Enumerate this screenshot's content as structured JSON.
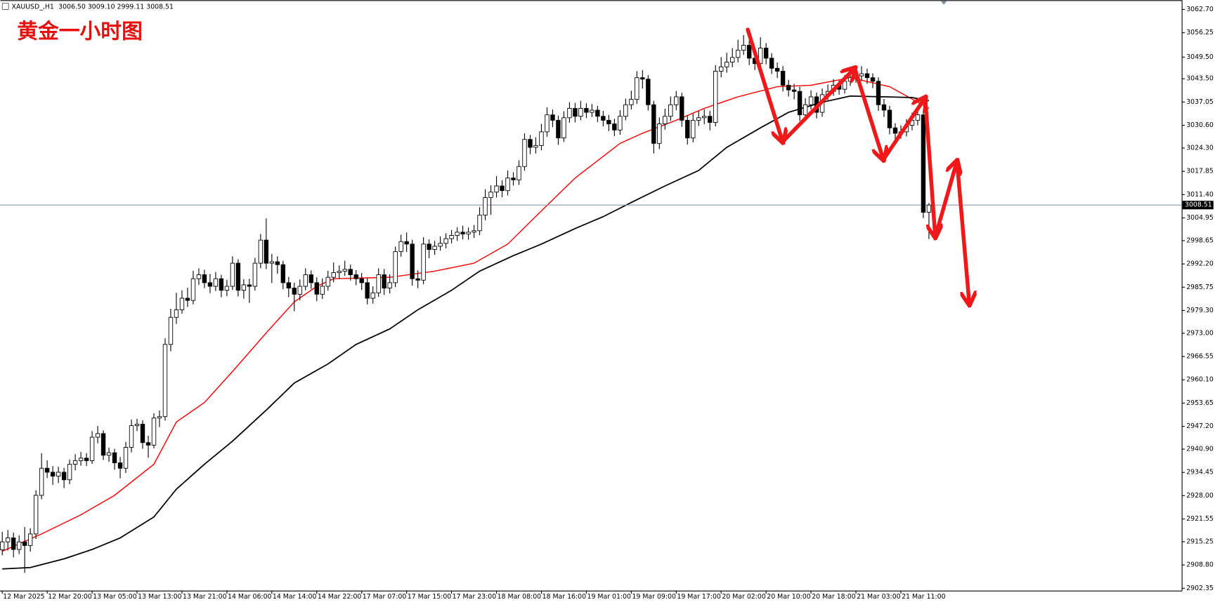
{
  "header": {
    "symbol": "XAUUSD_,H1",
    "open": "3006.50",
    "high": "3009.10",
    "low": "2999.11",
    "close": "3008.51"
  },
  "chart_data": {
    "type": "candlestick",
    "title": "黄金一小时图",
    "up_color": "#ffffff",
    "down_color": "#000000",
    "last_price_line_color": "#8a9bb0",
    "open": [
      2913.0,
      2915.2,
      2916.3,
      2913.1,
      2915.2,
      2914.2,
      2917.4,
      2928.1,
      2935.6,
      2934.5,
      2933.4,
      2934.5,
      2932.4,
      2936.7,
      2937.7,
      2938.4,
      2937.7,
      2944.2,
      2945.2,
      2939.2,
      2939.9,
      2937.1,
      2935.6,
      2941.4,
      2947.4,
      2947.8,
      2942.7,
      2942.0,
      2949.5,
      2949.9,
      2969.9,
      2977.4,
      2979.5,
      2982.7,
      2982.1,
      2988.1,
      2989.2,
      2987.0,
      2986.0,
      2988.1,
      2984.9,
      2986.0,
      2992.4,
      2984.9,
      2986.4,
      2986.0,
      2992.4,
      2998.8,
      2992.4,
      2992.8,
      2992.0,
      2987.0,
      2985.5,
      2983.8,
      2986.0,
      2989.2,
      2987.0,
      2983.8,
      2986.0,
      2988.5,
      2989.8,
      2990.2,
      2990.7,
      2989.2,
      2988.1,
      2987.0,
      2982.7,
      2984.2,
      2989.2,
      2985.5,
      2987.0,
      2995.6,
      2998.4,
      2997.7,
      2988.1,
      2987.7,
      2997.7,
      2996.2,
      2997.1,
      2997.9,
      2999.2,
      3000.1,
      3001.0,
      3000.5,
      3001.0,
      3001.4,
      3005.7,
      3010.6,
      3012.1,
      3013.8,
      3012.5,
      3016.0,
      3015.5,
      3019.2,
      3026.7,
      3024.5,
      3025.0,
      3028.8,
      3033.5,
      3032.0,
      3027.1,
      3032.7,
      3035.3,
      3033.1,
      3035.3,
      3034.2,
      3034.8,
      3033.1,
      3032.0,
      3031.0,
      3029.3,
      3033.1,
      3036.3,
      3037.8,
      3043.8,
      3043.4,
      3036.3,
      3025.6,
      3031.0,
      3033.1,
      3036.3,
      3038.5,
      3032.0,
      3027.1,
      3032.0,
      3032.7,
      3033.1,
      3031.4,
      3045.6,
      3046.8,
      3048.1,
      3049.4,
      3051.4,
      3052.8,
      3049.2,
      3047.7,
      3052.0,
      3049.2,
      3046.4,
      3045.6,
      3041.7,
      3040.4,
      3040.0,
      3033.5,
      3036.3,
      3038.5,
      3034.2,
      3039.1,
      3040.0,
      3041.7,
      3040.6,
      3042.8,
      3043.8,
      3044.3,
      3044.9,
      3043.8,
      3042.8,
      3036.3,
      3034.8,
      3029.9,
      3028.4,
      3028.8,
      3030.6,
      3032.0,
      3033.5,
      3006.5
    ],
    "high": [
      2918.0,
      2918.5,
      2917.8,
      2917.0,
      2919.3,
      2919.0,
      2929.5,
      2939.8,
      2937.8,
      2936.2,
      2936.0,
      2935.7,
      2938.0,
      2939.5,
      2940.1,
      2939.8,
      2945.9,
      2947.3,
      2946.1,
      2941.3,
      2941.0,
      2938.7,
      2942.9,
      2949.1,
      2949.3,
      2948.9,
      2944.6,
      2950.8,
      2951.6,
      2971.6,
      2979.8,
      2984.2,
      2984.9,
      2985.6,
      2990.3,
      2991.0,
      2990.6,
      2989.4,
      2990.0,
      2989.2,
      2987.8,
      2994.3,
      2993.5,
      2988.0,
      2988.1,
      2993.9,
      3000.5,
      3004.8,
      2995.0,
      2994.3,
      2993.1,
      2988.6,
      2987.0,
      2987.9,
      2991.0,
      2990.4,
      2988.5,
      2988.2,
      2990.3,
      2992.6,
      2991.8,
      2993.1,
      2992.0,
      2990.5,
      2989.7,
      2988.3,
      2986.0,
      2991.0,
      2990.8,
      2989.3,
      2997.0,
      3000.3,
      3000.9,
      2998.9,
      2990.4,
      2999.6,
      2999.0,
      2998.6,
      2999.8,
      3000.7,
      3001.6,
      3002.4,
      3002.8,
      3002.3,
      3003.0,
      3007.9,
      3012.9,
      3014.0,
      3016.5,
      3015.4,
      3018.1,
      3017.6,
      3020.9,
      3028.4,
      3027.9,
      3027.3,
      3031.0,
      3035.6,
      3035.0,
      3033.3,
      3034.5,
      3037.0,
      3036.8,
      3037.4,
      3036.7,
      3036.5,
      3036.0,
      3034.6,
      3033.5,
      3032.4,
      3034.8,
      3038.0,
      3040.2,
      3045.6,
      3045.9,
      3044.5,
      3037.4,
      3032.8,
      3035.2,
      3038.6,
      3040.1,
      3039.6,
      3033.4,
      3033.8,
      3034.6,
      3035.0,
      3034.6,
      3047.3,
      3049.5,
      3050.7,
      3052.0,
      3054.3,
      3055.6,
      3054.1,
      3051.0,
      3055.0,
      3053.4,
      3050.6,
      3048.0,
      3047.0,
      3043.2,
      3042.1,
      3041.3,
      3038.1,
      3040.3,
      3039.7,
      3040.8,
      3041.9,
      3043.4,
      3043.0,
      3044.5,
      3045.6,
      3046.1,
      3047.0,
      3046.3,
      3045.0,
      3043.9,
      3037.9,
      3036.0,
      3031.2,
      3030.6,
      3032.3,
      3034.1,
      3035.8,
      3034.7,
      3009.1
    ],
    "low": [
      2911.5,
      2912.8,
      2910.9,
      2911.8,
      2906.6,
      2912.5,
      2916.0,
      2927.0,
      2932.9,
      2931.0,
      2931.5,
      2930.1,
      2931.2,
      2935.0,
      2936.3,
      2936.2,
      2936.8,
      2942.5,
      2937.9,
      2937.4,
      2935.2,
      2932.8,
      2934.3,
      2940.0,
      2945.9,
      2941.0,
      2938.5,
      2941.1,
      2947.0,
      2948.8,
      2968.0,
      2975.6,
      2978.4,
      2980.3,
      2981.0,
      2986.4,
      2985.5,
      2984.1,
      2984.7,
      2983.0,
      2983.3,
      2985.0,
      2983.2,
      2982.6,
      2981.4,
      2984.8,
      2991.0,
      2990.8,
      2986.9,
      2989.5,
      2985.2,
      2983.0,
      2979.1,
      2982.1,
      2984.9,
      2985.3,
      2981.9,
      2982.5,
      2984.8,
      2987.1,
      2988.0,
      2988.9,
      2987.6,
      2986.3,
      2985.0,
      2981.0,
      2981.2,
      2983.1,
      2983.6,
      2984.0,
      2985.8,
      2994.2,
      2995.5,
      2986.2,
      2985.5,
      2986.6,
      2993.8,
      2994.7,
      2995.9,
      2996.5,
      2997.9,
      2998.6,
      2999.0,
      2998.9,
      2999.4,
      3000.2,
      3004.3,
      3005.8,
      3010.6,
      3010.7,
      3011.2,
      3013.9,
      3014.1,
      3018.0,
      3022.6,
      3022.8,
      3023.7,
      3027.4,
      3030.1,
      3025.2,
      3026.0,
      3031.3,
      3031.4,
      3032.0,
      3032.6,
      3032.9,
      3031.5,
      3030.3,
      3029.0,
      3027.6,
      3028.0,
      3032.0,
      3035.0,
      3036.5,
      3040.8,
      3034.7,
      3022.8,
      3024.0,
      3029.4,
      3031.8,
      3034.8,
      3030.2,
      3025.3,
      3025.9,
      3030.4,
      3030.9,
      3029.2,
      3030.3,
      3043.9,
      3045.2,
      3046.7,
      3048.0,
      3050.1,
      3047.3,
      3045.9,
      3046.5,
      3047.5,
      3044.8,
      3043.7,
      3040.0,
      3038.6,
      3037.8,
      3031.8,
      3032.2,
      3035.0,
      3032.5,
      3033.0,
      3037.6,
      3038.8,
      3039.1,
      3039.4,
      3041.5,
      3042.4,
      3043.0,
      3042.1,
      3040.9,
      3034.6,
      3032.9,
      3028.1,
      3026.7,
      3026.9,
      3027.5,
      3029.2,
      3030.6,
      3004.9,
      2999.11
    ],
    "close": [
      2915.2,
      2916.3,
      2913.1,
      2915.2,
      2914.2,
      2917.4,
      2928.1,
      2935.6,
      2934.5,
      2933.4,
      2934.5,
      2932.4,
      2936.7,
      2937.7,
      2938.4,
      2937.7,
      2944.2,
      2945.2,
      2939.2,
      2939.9,
      2937.1,
      2935.6,
      2941.4,
      2947.4,
      2947.8,
      2942.7,
      2942.0,
      2949.5,
      2949.9,
      2969.9,
      2977.4,
      2979.5,
      2982.7,
      2982.1,
      2988.1,
      2989.2,
      2987.0,
      2986.0,
      2988.1,
      2984.9,
      2986.0,
      2992.4,
      2984.9,
      2986.4,
      2986.0,
      2992.4,
      2998.8,
      2992.4,
      2992.8,
      2992.0,
      2987.0,
      2985.5,
      2983.8,
      2986.0,
      2989.2,
      2987.0,
      2983.8,
      2986.0,
      2988.5,
      2989.8,
      2990.2,
      2990.7,
      2989.2,
      2988.1,
      2987.0,
      2982.7,
      2984.2,
      2989.2,
      2985.5,
      2987.0,
      2995.6,
      2998.4,
      2997.7,
      2988.1,
      2987.7,
      2997.7,
      2996.2,
      2997.1,
      2997.9,
      2999.2,
      3000.1,
      3001.0,
      3000.5,
      3001.0,
      3001.4,
      3005.7,
      3010.6,
      3012.1,
      3013.8,
      3012.5,
      3016.0,
      3015.5,
      3019.2,
      3026.7,
      3024.5,
      3025.0,
      3028.8,
      3033.5,
      3032.0,
      3027.1,
      3032.7,
      3035.3,
      3033.1,
      3035.3,
      3034.2,
      3034.8,
      3033.1,
      3032.0,
      3031.0,
      3029.3,
      3033.1,
      3036.3,
      3037.8,
      3043.8,
      3043.4,
      3036.3,
      3025.6,
      3031.0,
      3033.1,
      3036.3,
      3038.5,
      3032.0,
      3027.1,
      3032.0,
      3032.7,
      3033.1,
      3031.4,
      3045.6,
      3046.8,
      3048.1,
      3049.4,
      3051.4,
      3052.8,
      3049.2,
      3047.7,
      3052.0,
      3049.2,
      3046.4,
      3045.6,
      3041.7,
      3040.4,
      3040.0,
      3033.5,
      3036.3,
      3038.5,
      3034.2,
      3039.1,
      3040.0,
      3041.7,
      3040.6,
      3042.8,
      3043.8,
      3044.3,
      3044.9,
      3043.8,
      3042.8,
      3036.3,
      3034.8,
      3029.9,
      3028.4,
      3028.8,
      3030.6,
      3032.0,
      3033.5,
      3006.5,
      3008.51
    ],
    "moving_averages": [
      {
        "color": "#ff0000",
        "x": [
          0,
          7,
          14,
          20,
          27,
          31,
          36,
          41,
          47,
          52,
          56,
          59,
          69,
          77,
          84,
          90,
          96,
          102,
          110,
          114,
          120,
          125,
          131,
          138,
          144,
          151,
          158,
          165
        ],
        "values": [
          2912.6,
          2917.4,
          2922.7,
          2928.1,
          2936.7,
          2948.4,
          2953.8,
          2962.4,
          2973.1,
          2981.7,
          2986.0,
          2988.1,
          2988.5,
          2990.2,
          2992.4,
          2997.7,
          3006.9,
          3016.0,
          3025.6,
          3028.4,
          3032.0,
          3035.3,
          3038.5,
          3041.3,
          3041.7,
          3043.8,
          3041.3,
          3035.3
        ]
      },
      {
        "color": "#000000",
        "x": [
          0,
          5,
          11,
          16,
          21,
          27,
          31,
          36,
          41,
          47,
          52,
          58,
          63,
          69,
          74,
          80,
          85,
          91,
          96,
          102,
          107,
          113,
          118,
          124,
          129,
          135,
          140,
          146,
          151,
          157,
          162,
          165
        ],
        "values": [
          2907.7,
          2908.1,
          2910.5,
          2913.1,
          2916.3,
          2922.1,
          2929.8,
          2936.7,
          2943.1,
          2951.7,
          2959.2,
          2964.5,
          2969.9,
          2974.2,
          2979.5,
          2984.9,
          2990.2,
          2994.5,
          2997.7,
          3002.0,
          3005.3,
          3010.0,
          3013.8,
          3018.1,
          3024.5,
          3029.9,
          3034.2,
          3037.0,
          3038.7,
          3038.5,
          3038.3,
          3037.4
        ]
      }
    ],
    "xlim": [
      -0.4,
      210
    ],
    "ylim": [
      2901.71,
      3065.27
    ],
    "xticks": [
      {
        "value": 0,
        "label": "12 Mar 2025"
      },
      {
        "value": 8,
        "label": "12 Mar 20:00"
      },
      {
        "value": 16,
        "label": "13 Mar 05:00"
      },
      {
        "value": 24,
        "label": "13 Mar 13:00"
      },
      {
        "value": 32,
        "label": "13 Mar 21:00"
      },
      {
        "value": 40,
        "label": "14 Mar 06:00"
      },
      {
        "value": 48,
        "label": "14 Mar 14:00"
      },
      {
        "value": 56,
        "label": "14 Mar 22:00"
      },
      {
        "value": 64,
        "label": "17 Mar 07:00"
      },
      {
        "value": 72,
        "label": "17 Mar 15:00"
      },
      {
        "value": 80,
        "label": "17 Mar 23:00"
      },
      {
        "value": 88,
        "label": "18 Mar 08:00"
      },
      {
        "value": 96,
        "label": "18 Mar 16:00"
      },
      {
        "value": 104,
        "label": "19 Mar 01:00"
      },
      {
        "value": 112,
        "label": "19 Mar 09:00"
      },
      {
        "value": 120,
        "label": "19 Mar 17:00"
      },
      {
        "value": 128,
        "label": "20 Mar 02:00"
      },
      {
        "value": 136,
        "label": "20 Mar 10:00"
      },
      {
        "value": 144,
        "label": "20 Mar 18:00"
      },
      {
        "value": 152,
        "label": "21 Mar 03:00"
      },
      {
        "value": 160,
        "label": "21 Mar 11:00"
      }
    ],
    "yticks": [
      {
        "value": 3062.7,
        "label": "3062.70"
      },
      3056.25,
      {
        "value": 3049.5,
        "label": "3049.50"
      },
      {
        "value": 3043.5,
        "label": "3043.50"
      },
      3037.05,
      {
        "value": 3030.6,
        "label": "3030.60"
      },
      {
        "value": 3024.3,
        "label": "3024.30"
      },
      3017.85,
      {
        "value": 3011.4,
        "label": "3011.40"
      },
      3004.95,
      2998.65,
      {
        "value": 2992.2,
        "label": "2992.20"
      },
      2985.75,
      {
        "value": 2979.3,
        "label": "2979.30"
      },
      {
        "value": 2973.0,
        "label": "2973.00"
      },
      2966.55,
      {
        "value": 2960.1,
        "label": "2960.10"
      },
      2953.65,
      {
        "value": 2947.2,
        "label": "2947.20"
      },
      {
        "value": 2940.9,
        "label": "2940.90"
      },
      2934.45,
      {
        "value": 2928.0,
        "label": "2928.00"
      },
      2921.55,
      2915.25,
      {
        "value": 2908.8,
        "label": "2908.80"
      },
      2902.35
    ]
  }
}
